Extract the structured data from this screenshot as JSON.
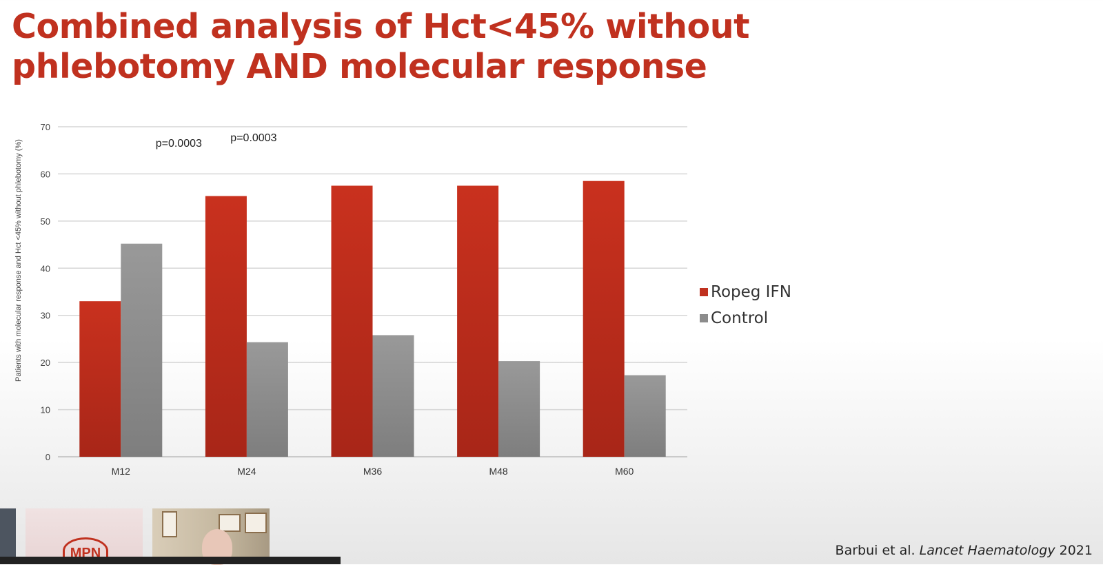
{
  "slide": {
    "title_line1": "Combined analysis of Hct<45% without",
    "title_line2": "phlebotomy AND molecular response",
    "citation_authors": "Barbui et al. ",
    "citation_journal": "Lancet Haematology",
    "citation_year": " 2021"
  },
  "chart_data": {
    "type": "bar",
    "title": "",
    "xlabel": "",
    "ylabel": "Patients with molecular response and Hct <45% without phlebotomy (%)",
    "ylim": [
      0,
      70
    ],
    "yticks": [
      0,
      10,
      20,
      30,
      40,
      50,
      60,
      70
    ],
    "grid": true,
    "legend_position": "right",
    "categories": [
      "M12",
      "M24",
      "M36",
      "M48",
      "M60"
    ],
    "series": [
      {
        "name": "Ropeg IFN",
        "color": "#c0311f",
        "values": [
          33,
          55.3,
          57.5,
          57.5,
          58.5
        ]
      },
      {
        "name": "Control",
        "color": "#8c8c8c",
        "values": [
          45.2,
          24.3,
          25.8,
          20.3,
          17.3
        ]
      }
    ],
    "annotations": [
      {
        "text": "p=0.0003",
        "category": "M12"
      },
      {
        "text": "p=0.0003",
        "category": "M24"
      }
    ]
  },
  "video": {
    "logo_text": "MPN"
  }
}
